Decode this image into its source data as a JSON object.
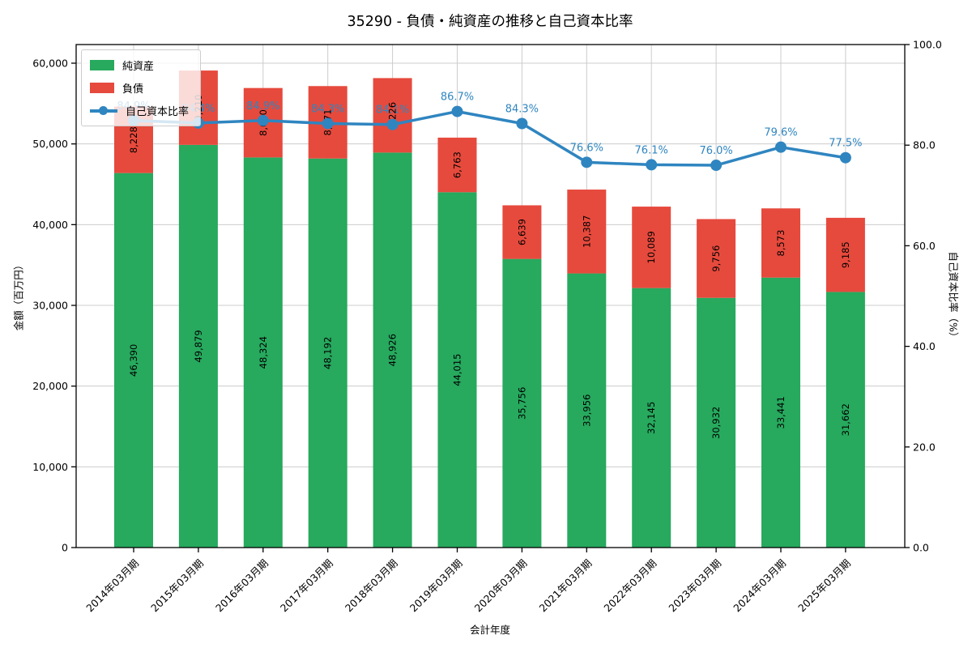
{
  "title": "35290 - 負債・純資産の推移と自己資本比率",
  "colors": {
    "equity": "#27a95e",
    "liabilities": "#e64a3d",
    "ratio_line": "#2f85c0",
    "grid": "#cccccc",
    "axis": "#000000",
    "bar_label_text": "#000000"
  },
  "legend": {
    "items": [
      {
        "label": "純資産",
        "swatch": "rect",
        "color_key": "equity"
      },
      {
        "label": "負債",
        "swatch": "rect",
        "color_key": "liabilities"
      },
      {
        "label": "自己資本比率",
        "swatch": "line",
        "color_key": "ratio_line"
      }
    ]
  },
  "chart_data": {
    "type": "bar",
    "stacked": true,
    "title": "35290 - 負債・純資産の推移と自己資本比率",
    "xlabel": "会計年度",
    "ylabel_left": "金額（百万円）",
    "ylabel_right": "自己資本比率（%）",
    "categories": [
      "2014年03月期",
      "2015年03月期",
      "2016年03月期",
      "2017年03月期",
      "2018年03月期",
      "2019年03月期",
      "2020年03月期",
      "2021年03月期",
      "2022年03月期",
      "2023年03月期",
      "2024年03月期",
      "2025年03月期"
    ],
    "series": [
      {
        "name": "純資産",
        "color_key": "equity",
        "values": [
          46390,
          49879,
          48324,
          48192,
          48926,
          44015,
          35756,
          33956,
          32145,
          30932,
          33441,
          31662
        ]
      },
      {
        "name": "負債",
        "color_key": "liabilities",
        "values": [
          8228,
          9210,
          8600,
          8971,
          9226,
          6763,
          6639,
          10387,
          10089,
          9756,
          8573,
          9185
        ]
      }
    ],
    "line_series": {
      "name": "自己資本比率",
      "axis": "right",
      "color_key": "ratio_line",
      "values": [
        84.9,
        84.4,
        84.9,
        84.3,
        84.1,
        86.7,
        84.3,
        76.6,
        76.1,
        76.0,
        79.6,
        77.5
      ]
    },
    "yticks_left": [
      0,
      10000,
      20000,
      30000,
      40000,
      50000,
      60000
    ],
    "yticks_right": [
      0,
      20,
      40,
      60,
      80,
      100
    ],
    "ylim_left": [
      0,
      62300
    ],
    "ylim_right": [
      0,
      100
    ],
    "grid": true,
    "legend_position": "upper left"
  }
}
